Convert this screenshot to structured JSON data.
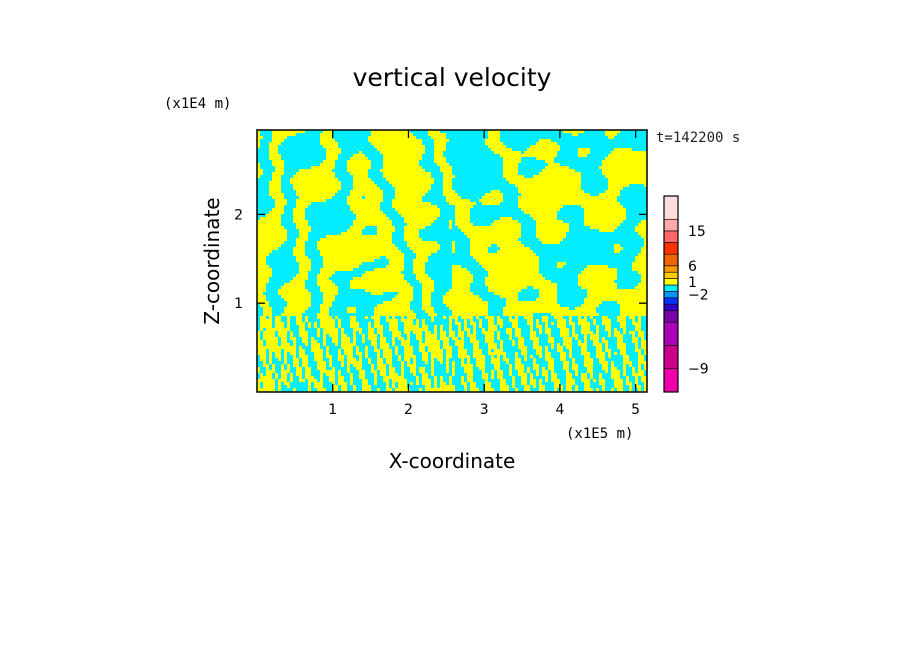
{
  "chart_data": {
    "type": "heatmap",
    "title": "vertical velocity",
    "xlabel": "X-coordinate",
    "ylabel": "Z-coordinate",
    "x_unit": "(x1E5 m)",
    "y_unit": "(x1E4 m)",
    "time_label": "t=142200 s",
    "xlim": [
      0,
      5.15
    ],
    "ylim": [
      0,
      2.95
    ],
    "x_ticks": [
      {
        "value": 1,
        "label": "1"
      },
      {
        "value": 2,
        "label": "2"
      },
      {
        "value": 3,
        "label": "3"
      },
      {
        "value": 4,
        "label": "4"
      },
      {
        "value": 5,
        "label": "5"
      }
    ],
    "y_ticks": [
      {
        "value": 1,
        "label": "1"
      },
      {
        "value": 2,
        "label": "2"
      }
    ],
    "dominant_colors": {
      "positive": "#ffff00",
      "negative": "#00eeff"
    },
    "colorbar": {
      "bands": [
        "#ee00aa",
        "#cc0088",
        "#aa00bb",
        "#7700aa",
        "#3300cc",
        "#0033ff",
        "#0099ff",
        "#00eeff",
        "#ffff00",
        "#ffcc00",
        "#ff9900",
        "#ee6600",
        "#ff3300",
        "#ff6666",
        "#ffaaaa",
        "#ffdddd"
      ],
      "band_weights": [
        2,
        2,
        2,
        1,
        0.55,
        0.55,
        0.55,
        0.55,
        0.55,
        0.55,
        0.55,
        1,
        1,
        1,
        1,
        2
      ],
      "labels": [
        {
          "text": "15",
          "band": 14
        },
        {
          "text": "6",
          "band": 11
        },
        {
          "text": "1",
          "band": 8.5
        },
        {
          "text": "−2",
          "band": 6.5
        },
        {
          "text": "−9",
          "band": 1
        }
      ]
    }
  }
}
